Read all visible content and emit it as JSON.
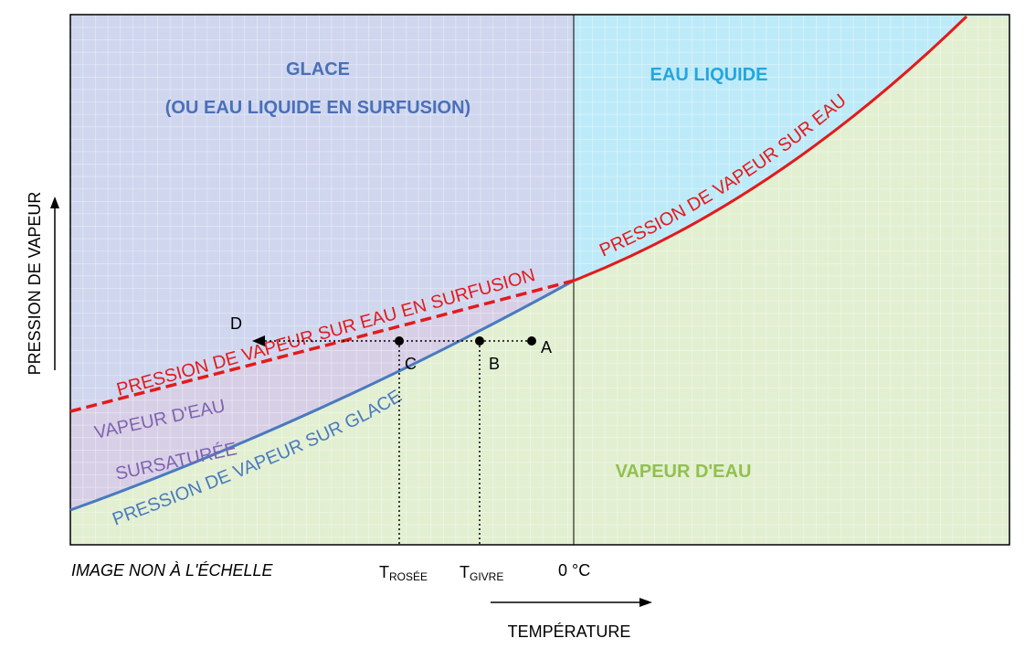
{
  "regions": {
    "ice_title": "GLACE",
    "ice_subtitle": "(OU EAU LIQUIDE EN SURFUSION)",
    "liquid": "EAU LIQUIDE",
    "vapor": "VAPEUR D'EAU",
    "supersat_line1": "VAPEUR D'EAU",
    "supersat_line2": "SURSATURÉE"
  },
  "curves": {
    "water": "PRESSION DE VAPEUR SUR EAU",
    "supercooled": "PRESSION DE VAPEUR SUR EAU EN SURFUSION",
    "ice": "PRESSION DE VAPEUR SUR GLACE"
  },
  "points": {
    "a": "A",
    "b": "B",
    "c": "C",
    "d": "D"
  },
  "axes": {
    "y_label": "PRESSION DE VAPEUR",
    "x_label": "TEMPÉRATURE",
    "t_rosee_main": "T",
    "t_rosee_sub": "ROSÉE",
    "t_givre_main": "T",
    "t_givre_sub": "GIVRE",
    "zero": "0 °C"
  },
  "note": "IMAGE NON À L'ÉCHELLE",
  "colors": {
    "ice_region": "#cfd6ee",
    "liquid_region": "#bdeaf8",
    "vapor_region": "#e2efd1",
    "supersat_region": "#d7cfe6",
    "water_curve": "#e31a1c",
    "ice_curve": "#4a7abf",
    "ice_text": "#4a70b8",
    "liquid_text": "#22a6e0",
    "vapor_text": "#92c050",
    "supersat_text": "#7f63b0"
  }
}
